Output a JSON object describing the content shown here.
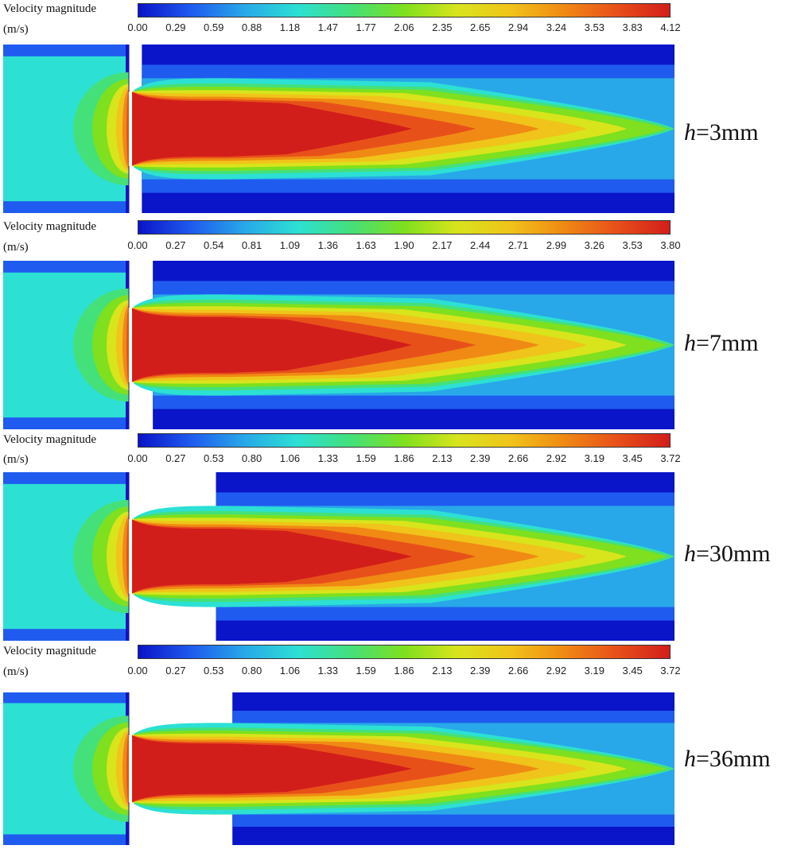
{
  "colorbar_title": "Velocity magnitude",
  "colorbar_unit": "(m/s)",
  "colormap": [
    "#0a14c8",
    "#1f5bef",
    "#28a8e8",
    "#2ce0d4",
    "#44e07a",
    "#7ee01e",
    "#d8e41c",
    "#f0c41a",
    "#f08a14",
    "#e8501a",
    "#d21e1a"
  ],
  "panels": [
    {
      "label_var": "h",
      "label_value": "=3mm",
      "colorbar_ticks": [
        "0.00",
        "0.29",
        "0.59",
        "0.88",
        "1.18",
        "1.47",
        "1.77",
        "2.06",
        "2.35",
        "2.65",
        "2.94",
        "3.24",
        "3.53",
        "3.83",
        "4.12"
      ],
      "gap_mm": 3
    },
    {
      "label_var": "h",
      "label_value": "=7mm",
      "colorbar_ticks": [
        "0.00",
        "0.27",
        "0.54",
        "0.81",
        "1.09",
        "1.36",
        "1.63",
        "1.90",
        "2.17",
        "2.44",
        "2.71",
        "2.99",
        "3.26",
        "3.53",
        "3.80"
      ],
      "gap_mm": 7
    },
    {
      "label_var": "h",
      "label_value": "=30mm",
      "colorbar_ticks": [
        "0.00",
        "0.27",
        "0.53",
        "0.80",
        "1.06",
        "1.33",
        "1.59",
        "1.86",
        "2.13",
        "2.39",
        "2.66",
        "2.92",
        "3.19",
        "3.45",
        "3.72"
      ],
      "gap_mm": 30
    },
    {
      "label_var": "h",
      "label_value": "=36mm",
      "colorbar_ticks": [
        "0.00",
        "0.27",
        "0.53",
        "0.80",
        "1.06",
        "1.33",
        "1.59",
        "1.86",
        "2.13",
        "2.39",
        "2.66",
        "2.92",
        "3.19",
        "3.45",
        "3.72"
      ],
      "gap_mm": 36
    }
  ]
}
